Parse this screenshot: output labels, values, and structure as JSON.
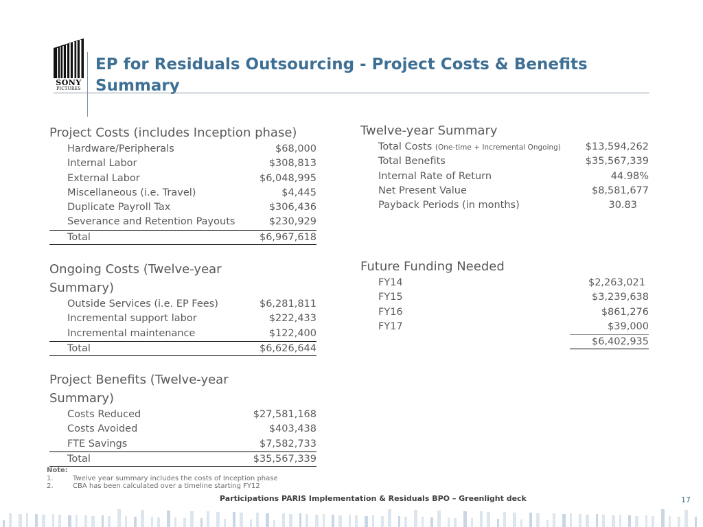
{
  "slide": {
    "title": "EP for Residuals Outsourcing - Project Costs & Benefits Summary",
    "logo": {
      "line1": "SONY",
      "line2": "PICTURES"
    },
    "footer": "Participations PARIS Implementation & Residuals BPO – Greenlight deck",
    "page_number": "17"
  },
  "project_costs": {
    "heading": "Project Costs (includes Inception phase)",
    "rows": [
      {
        "label": "Hardware/Peripherals",
        "value": "$68,000"
      },
      {
        "label": "Internal Labor",
        "value": "$308,813"
      },
      {
        "label": "External Labor",
        "value": "$6,048,995"
      },
      {
        "label": "Miscellaneous (i.e. Travel)",
        "value": "$4,445"
      },
      {
        "label": "Duplicate Payroll Tax",
        "value": "$306,436"
      },
      {
        "label": "Severance and Retention Payouts",
        "value": "$230,929"
      }
    ],
    "total": {
      "label": "Total",
      "value": "$6,967,618"
    }
  },
  "ongoing_costs": {
    "heading": "Ongoing Costs (Twelve-year Summary)",
    "rows": [
      {
        "label": "Outside Services (i.e. EP Fees)",
        "value": "$6,281,811"
      },
      {
        "label": "Incremental support labor",
        "value": "$222,433"
      },
      {
        "label": "Incremental maintenance",
        "value": "$122,400"
      }
    ],
    "total": {
      "label": "Total",
      "value": "$6,626,644"
    }
  },
  "project_benefits": {
    "heading": "Project Benefits (Twelve-year Summary)",
    "rows": [
      {
        "label": "Costs Reduced",
        "value": "$27,581,168"
      },
      {
        "label": "Costs Avoided",
        "value": "$403,438"
      },
      {
        "label": "FTE Savings",
        "value": "$7,582,733"
      }
    ],
    "total": {
      "label": "Total",
      "value": "$35,567,339"
    }
  },
  "twelve_year_summary": {
    "heading": "Twelve-year Summary",
    "rows": [
      {
        "label": "Total Costs",
        "sublabel": "(One-time + Incremental Ongoing)",
        "value": "$13,594,262"
      },
      {
        "label": "Total Benefits",
        "value": "$35,567,339"
      },
      {
        "label": "Internal Rate of Return",
        "value": "44.98%"
      },
      {
        "label": "Net Present Value",
        "value": "$8,581,677"
      },
      {
        "label": "Payback Periods (in months)",
        "value": "30.83"
      }
    ]
  },
  "future_funding": {
    "heading": "Future Funding Needed",
    "rows": [
      {
        "label": "FY14",
        "value": "$2,263,021"
      },
      {
        "label": "FY15",
        "value": "$3,239,638"
      },
      {
        "label": "FY16",
        "value": "$861,276"
      },
      {
        "label": "FY17",
        "value": "$39,000"
      }
    ],
    "total": {
      "value": "$6,402,935"
    }
  },
  "notes": {
    "heading": "Note:",
    "items": [
      {
        "num": "1.",
        "text": "Twelve year summary includes the costs of Inception phase"
      },
      {
        "num": "2.",
        "text": "CBA has been calculated over a timeline starting FY12"
      }
    ]
  }
}
